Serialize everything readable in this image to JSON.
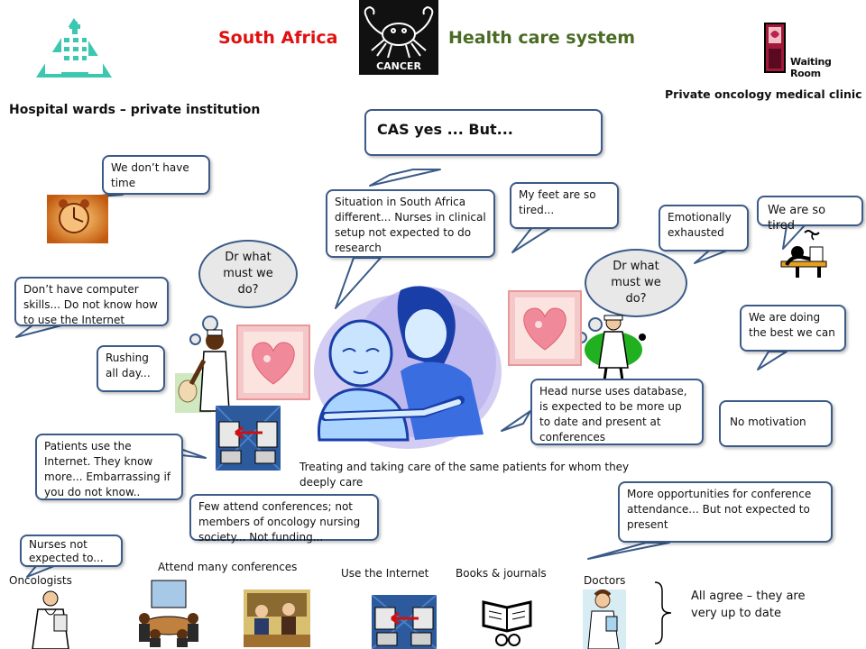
{
  "header": {
    "country": "South Africa",
    "system": "Health care system",
    "cancer_label": "CANCER",
    "waiting_room": "Waiting Room",
    "hospital_label": "Hospital wards – private institution",
    "clinic_label": "Private oncology medical clinic",
    "colors": {
      "country": "#e01010",
      "system": "#4a6b24"
    }
  },
  "bubbles": {
    "cas": "CAS yes ... But...",
    "no_time": "We don’t have time",
    "situation": "Situation in South Africa different... Nurses in clinical setup not expected to do research",
    "feet": "My feet are so tired...",
    "emotional": "Emotionally exhausted",
    "tired": "We are so tired",
    "dr_left": "Dr what must we do?",
    "dr_right": "Dr what must we do?",
    "no_skills": "Don’t have computer skills... Do not know how to use the Internet",
    "best": "We are doing the best we can",
    "rushing": "Rushing all day...",
    "head_nurse": "Head nurse uses database, is expected to be more up to date and present at conferences",
    "no_motivation": "No motivation",
    "patients": "Patients use the Internet. They know more... Embarrassing if you do not know..",
    "few_attend": "Few attend conferences; not members of oncology nursing society... Not funding...",
    "more_opps": "More opportunities for conference attendance... But not expected to present",
    "nurses_not": "Nurses not expected to..."
  },
  "captions": {
    "treating": "Treating and taking care of the same patients for whom they deeply care",
    "oncologists": "Oncologists",
    "attend": "Attend many conferences",
    "internet": "Use the Internet",
    "books": "Books & journals",
    "doctors": "Doctors",
    "agree": "All agree – they are very up to date"
  },
  "icons": [
    "hospital-building-icon",
    "cancer-crab-icon",
    "waiting-room-icon",
    "alarm-clock-icon",
    "heart-card-icon",
    "nurse-figure-icon",
    "network-computers-icon",
    "tired-person-icon",
    "doctor-figure-icon",
    "conference-meeting-icon",
    "book-reader-icon"
  ]
}
